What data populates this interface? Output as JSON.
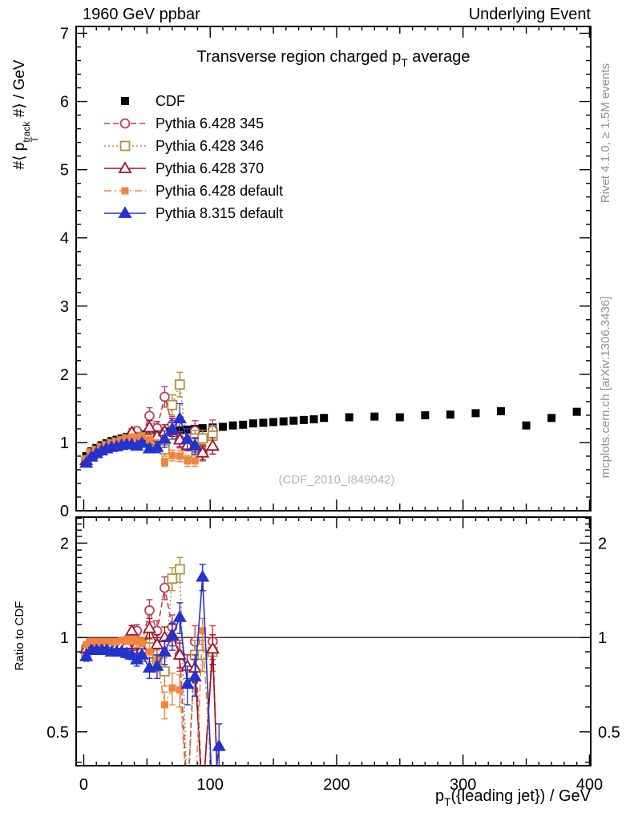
{
  "header": {
    "left": "1960 GeV ppbar",
    "right": "Underlying Event"
  },
  "titles": {
    "plot_title": {
      "p1": "Transverse region charged ",
      "p2": "p",
      "sub": "T",
      "p3": " average"
    },
    "watermark": "(CDF_2010_I849042)",
    "right_top": "Rivet 4.1.0, ≥ 1.5M events",
    "right_bottom": "mcplots.cern.ch [arXiv:1306.3436]",
    "y_main_label": {
      "p1": "#⟨ ",
      "p2": "p",
      "sup": "track",
      "sub": "T",
      "p3": " #⟩ / GeV"
    },
    "y_ratio_label": "Ratio to CDF",
    "x_label": {
      "p2": "p",
      "sub": "T",
      "p3": "({leading jet}) / GeV"
    }
  },
  "chart_data": {
    "type": "scatter",
    "title": "Transverse region charged pT average",
    "xlabel": "pT({leading jet}) / GeV",
    "x_range": [
      -6,
      401
    ],
    "x_ticks_labeled": [
      0,
      100,
      200,
      300,
      400
    ],
    "x_tick_minor_step": 10,
    "x_tick_medium_step": 50,
    "panels": {
      "main": {
        "ylabel": "#< pT^track #> / GeV",
        "yscale": "linear",
        "y_range": [
          0,
          7.1
        ],
        "y_ticks_labeled": [
          0,
          1,
          2,
          3,
          4,
          5,
          6,
          7
        ],
        "y_tick_minor_step": 0.2,
        "grid": false
      },
      "ratio": {
        "ylabel": "Ratio to CDF",
        "yscale": "log",
        "y_range": [
          0.39,
          2.42
        ],
        "y_ticks_labeled": [
          0.5,
          1,
          2
        ],
        "y_tick_minor_step": 0.1,
        "ref_line": 1,
        "grid": false
      }
    },
    "legend_position": "top-left",
    "series": [
      {
        "name": "CDF",
        "color": "#000000",
        "line": "none",
        "marker": "square-filled",
        "marker_size": 10,
        "x": [
          2,
          6,
          10,
          14,
          18,
          22,
          26,
          30,
          34,
          38,
          42,
          46,
          52,
          58,
          64,
          70,
          76,
          82,
          88,
          94,
          102,
          110,
          118,
          126,
          134,
          142,
          150,
          158,
          166,
          174,
          182,
          190,
          210,
          230,
          250,
          270,
          290,
          310,
          330,
          350,
          370,
          390
        ],
        "y_main": [
          0.8,
          0.87,
          0.92,
          0.96,
          0.99,
          1.02,
          1.04,
          1.06,
          1.08,
          1.1,
          1.11,
          1.12,
          1.14,
          1.15,
          1.16,
          1.17,
          1.18,
          1.19,
          1.2,
          1.21,
          1.22,
          1.23,
          1.25,
          1.26,
          1.28,
          1.29,
          1.3,
          1.31,
          1.32,
          1.33,
          1.34,
          1.36,
          1.37,
          1.38,
          1.37,
          1.4,
          1.41,
          1.43,
          1.46,
          1.25,
          1.36,
          1.45
        ],
        "err_const": 0.02,
        "y_ratio": null,
        "err_ratio": null
      },
      {
        "name": "Pythia 6.428 345",
        "color": "#bc4059",
        "line": "dashed",
        "marker": "circle-open",
        "marker_size": 11,
        "x": [
          2,
          6,
          10,
          14,
          18,
          22,
          26,
          30,
          34,
          38,
          42,
          46,
          52,
          58,
          64,
          70,
          76,
          82,
          88,
          94,
          102,
          107
        ],
        "y_main": [
          0.75,
          0.83,
          0.88,
          0.92,
          0.95,
          0.97,
          0.99,
          1.01,
          1.04,
          1.12,
          1.17,
          1.08,
          1.39,
          1.21,
          1.67,
          1.26,
          1.04,
          0.92,
          1.17,
          0.85,
          1.18,
          null
        ],
        "err_main": [
          0.03,
          0.02,
          0.02,
          0.02,
          0.02,
          0.02,
          0.02,
          0.02,
          0.03,
          0.05,
          0.06,
          0.05,
          0.12,
          0.1,
          0.15,
          0.12,
          0.12,
          0.1,
          0.15,
          0.12,
          0.15,
          null
        ],
        "y_ratio": [
          0.93,
          0.95,
          0.95,
          0.95,
          0.95,
          0.95,
          0.95,
          0.95,
          0.96,
          1.02,
          1.05,
          0.96,
          1.22,
          1.05,
          1.44,
          1.08,
          0.88,
          0.3,
          0.97,
          0.3,
          0.97,
          0.25
        ],
        "err_ratio": [
          0.03,
          0.02,
          0.02,
          0.02,
          0.02,
          0.02,
          0.02,
          0.02,
          0.03,
          0.04,
          0.05,
          0.04,
          0.1,
          0.08,
          0.12,
          0.1,
          0.1,
          0.05,
          0.12,
          0.05,
          0.12,
          0.05
        ]
      },
      {
        "name": "Pythia 6.428 346",
        "color": "#b0923f",
        "line": "dotted",
        "marker": "square-open",
        "marker_size": 11,
        "x": [
          2,
          6,
          10,
          14,
          18,
          22,
          26,
          30,
          34,
          38,
          42,
          46,
          52,
          58,
          64,
          70,
          76,
          82,
          88,
          94,
          102,
          107
        ],
        "y_main": [
          0.72,
          0.84,
          0.88,
          0.92,
          0.95,
          0.98,
          1.0,
          1.02,
          1.05,
          1.07,
          1.08,
          1.08,
          1.06,
          0.98,
          0.9,
          1.55,
          1.85,
          0.85,
          1.06,
          1.06,
          1.1,
          null
        ],
        "err_main": [
          0.03,
          0.02,
          0.02,
          0.02,
          0.02,
          0.02,
          0.02,
          0.02,
          0.03,
          0.04,
          0.05,
          0.05,
          0.08,
          0.08,
          0.1,
          0.15,
          0.18,
          0.1,
          0.12,
          0.12,
          0.15,
          null
        ],
        "y_ratio": [
          0.9,
          0.96,
          0.96,
          0.96,
          0.96,
          0.96,
          0.96,
          0.96,
          0.97,
          0.97,
          0.97,
          0.96,
          0.93,
          0.85,
          0.78,
          1.54,
          1.65,
          0.3,
          0.88,
          0.88,
          0.9,
          0.25
        ],
        "err_ratio": [
          0.03,
          0.02,
          0.02,
          0.02,
          0.02,
          0.02,
          0.02,
          0.02,
          0.03,
          0.03,
          0.04,
          0.04,
          0.07,
          0.07,
          0.08,
          0.13,
          0.15,
          0.05,
          0.1,
          0.1,
          0.12,
          0.05
        ]
      },
      {
        "name": "Pythia 6.428 370",
        "color": "#a01228",
        "line": "solid",
        "marker": "triangle-open",
        "marker_size": 12,
        "x": [
          2,
          6,
          10,
          14,
          18,
          22,
          26,
          30,
          34,
          38,
          42,
          46,
          52,
          58,
          64,
          70,
          76,
          82,
          88,
          94,
          102,
          107
        ],
        "y_main": [
          0.74,
          0.82,
          0.87,
          0.91,
          0.94,
          0.96,
          0.98,
          1.01,
          1.03,
          1.15,
          1.05,
          1.03,
          1.22,
          1.09,
          1.16,
          1.19,
          1.04,
          0.96,
          0.96,
          0.85,
          0.95,
          null
        ],
        "err_main": [
          0.03,
          0.02,
          0.02,
          0.02,
          0.02,
          0.02,
          0.02,
          0.02,
          0.03,
          0.05,
          0.05,
          0.05,
          0.1,
          0.08,
          0.1,
          0.1,
          0.1,
          0.08,
          0.1,
          0.1,
          0.12,
          null
        ],
        "y_ratio": [
          0.92,
          0.94,
          0.94,
          0.94,
          0.94,
          0.94,
          0.94,
          0.95,
          0.95,
          1.05,
          0.95,
          0.92,
          1.07,
          0.95,
          1.0,
          1.02,
          0.88,
          0.81,
          0.8,
          0.3,
          0.92,
          0.25
        ],
        "err_ratio": [
          0.03,
          0.02,
          0.02,
          0.02,
          0.02,
          0.02,
          0.02,
          0.02,
          0.03,
          0.04,
          0.04,
          0.04,
          0.08,
          0.07,
          0.08,
          0.08,
          0.08,
          0.07,
          0.08,
          0.05,
          0.1,
          0.05
        ]
      },
      {
        "name": "Pythia 6.428 default",
        "color": "#f08540",
        "line": "dashdot",
        "marker": "square-filled",
        "marker_size": 9,
        "x": [
          2,
          6,
          10,
          14,
          18,
          22,
          26,
          30,
          34,
          38,
          42,
          46,
          52,
          58,
          64,
          70,
          76,
          82,
          88,
          94,
          102,
          107
        ],
        "y_main": [
          0.76,
          0.84,
          0.89,
          0.93,
          0.96,
          0.99,
          1.01,
          1.04,
          1.06,
          1.08,
          1.08,
          1.08,
          1.03,
          0.98,
          0.71,
          0.81,
          0.8,
          0.73,
          0.73,
          null,
          null,
          null
        ],
        "err_main": [
          0.02,
          0.02,
          0.02,
          0.02,
          0.02,
          0.02,
          0.02,
          0.02,
          0.03,
          0.04,
          0.04,
          0.04,
          0.06,
          0.06,
          0.06,
          0.08,
          0.08,
          0.08,
          0.08,
          null,
          null,
          null
        ],
        "y_ratio": [
          0.95,
          0.97,
          0.97,
          0.97,
          0.97,
          0.97,
          0.97,
          0.98,
          0.98,
          0.98,
          0.97,
          0.96,
          0.9,
          0.85,
          0.61,
          0.69,
          0.68,
          0.3,
          0.3,
          1.05,
          0.3,
          0.25
        ],
        "err_ratio": [
          0.02,
          0.02,
          0.02,
          0.02,
          0.02,
          0.02,
          0.02,
          0.02,
          0.03,
          0.03,
          0.04,
          0.04,
          0.06,
          0.06,
          0.06,
          0.08,
          0.08,
          0.05,
          0.05,
          0.1,
          0.05,
          0.05
        ]
      },
      {
        "name": "Pythia 8.315 default",
        "color": "#2433cc",
        "line": "solid",
        "marker": "triangle-filled",
        "marker_size": 12,
        "x": [
          2,
          6,
          10,
          14,
          18,
          22,
          26,
          30,
          34,
          38,
          42,
          46,
          52,
          58,
          64,
          70,
          76,
          82,
          88,
          94,
          102,
          107
        ],
        "y_main": [
          0.7,
          0.79,
          0.84,
          0.88,
          0.91,
          0.93,
          0.94,
          0.96,
          0.97,
          0.97,
          0.95,
          0.99,
          0.91,
          0.93,
          1.05,
          1.2,
          1.35,
          1.05,
          0.95,
          null,
          null,
          null
        ],
        "err_main": [
          0.03,
          0.02,
          0.02,
          0.02,
          0.02,
          0.02,
          0.02,
          0.02,
          0.03,
          0.03,
          0.04,
          0.04,
          0.06,
          0.08,
          0.12,
          0.15,
          0.22,
          0.15,
          0.12,
          null,
          null,
          null
        ],
        "y_ratio": [
          0.87,
          0.91,
          0.91,
          0.91,
          0.91,
          0.9,
          0.9,
          0.9,
          0.89,
          0.88,
          0.85,
          0.88,
          0.8,
          0.81,
          0.9,
          1.01,
          1.16,
          0.71,
          0.75,
          1.56,
          0.3,
          0.45
        ],
        "err_ratio": [
          0.03,
          0.02,
          0.02,
          0.02,
          0.02,
          0.02,
          0.02,
          0.02,
          0.03,
          0.03,
          0.04,
          0.04,
          0.06,
          0.07,
          0.08,
          0.1,
          0.13,
          0.1,
          0.1,
          0.15,
          0.05,
          0.08
        ]
      }
    ]
  }
}
